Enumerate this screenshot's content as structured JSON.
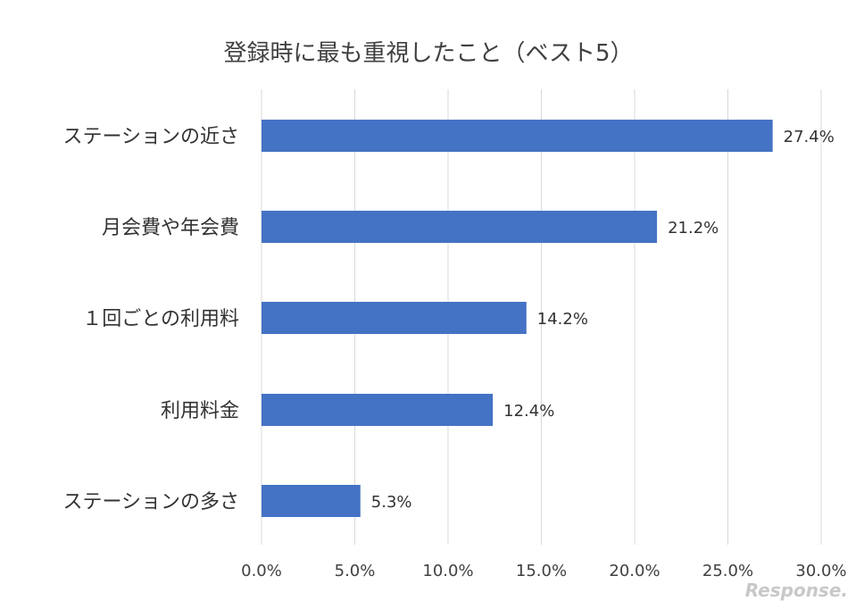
{
  "chart_data": {
    "type": "bar",
    "orientation": "horizontal",
    "title": "登録時に最も重視したこと（ベスト5）",
    "categories": [
      "ステーションの近さ",
      "月会費や年会費",
      "１回ごとの利用料",
      "利用料金",
      "ステーションの多さ"
    ],
    "values": [
      27.4,
      21.2,
      14.2,
      12.4,
      5.3
    ],
    "data_labels": [
      "27.4%",
      "21.2%",
      "14.2%",
      "12.4%",
      "5.3%"
    ],
    "xlim": [
      0,
      30
    ],
    "x_ticks": [
      0,
      5,
      10,
      15,
      20,
      25,
      30
    ],
    "x_tick_labels": [
      "0.0%",
      "5.0%",
      "10.0%",
      "15.0%",
      "20.0%",
      "25.0%",
      "30.0%"
    ],
    "grid": true,
    "bar_color": "#4472c4",
    "grid_color": "#d9d9d9"
  },
  "watermark": {
    "text": "Response."
  }
}
